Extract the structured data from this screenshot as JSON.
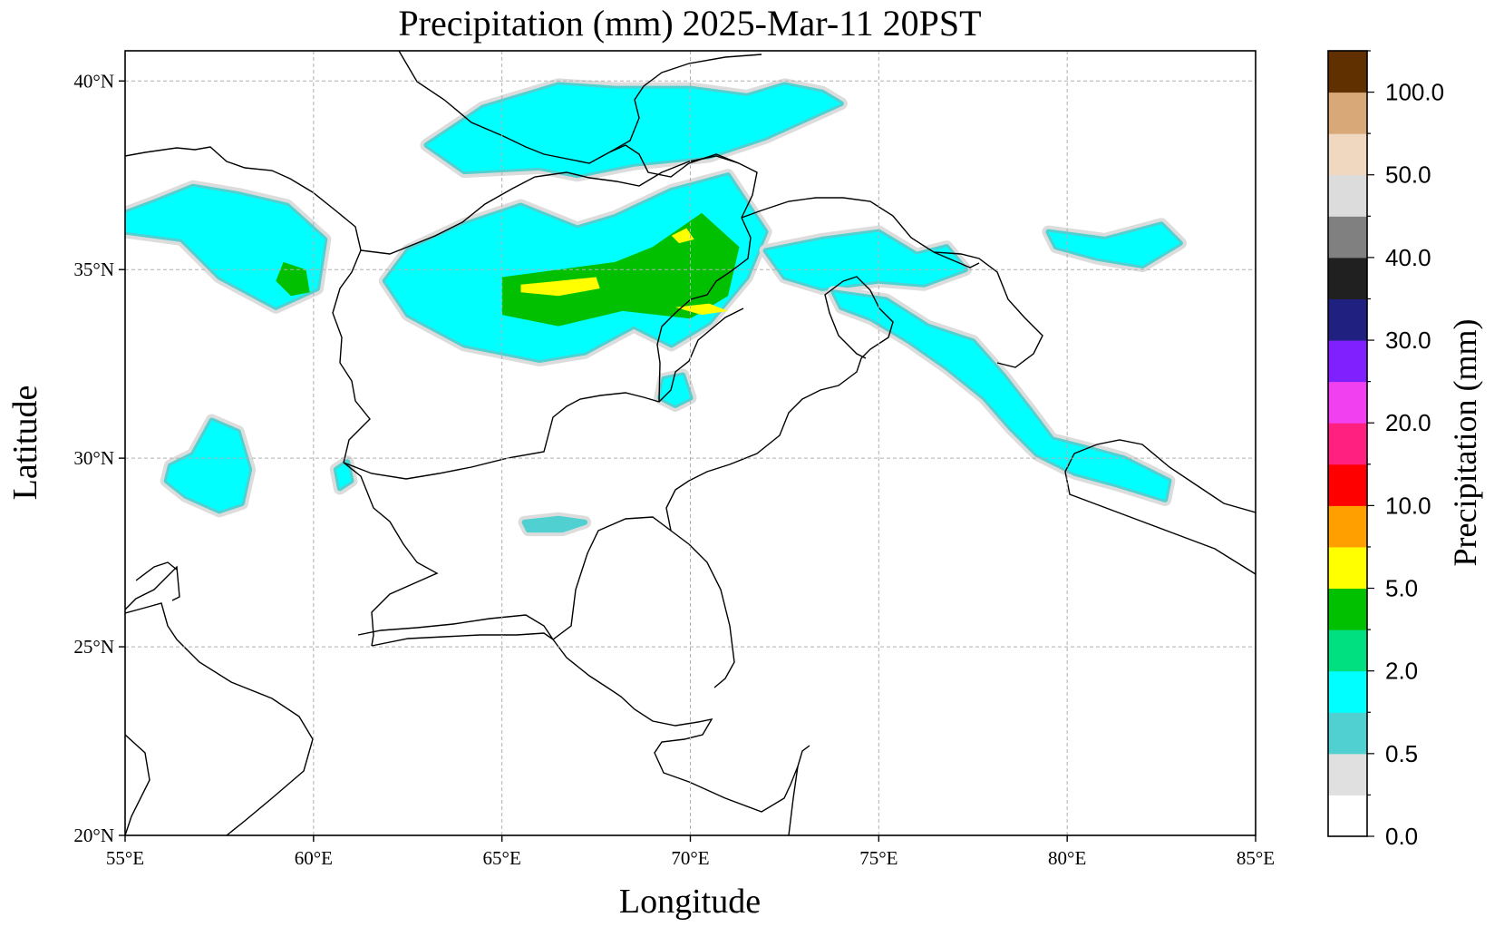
{
  "title": "Precipitation (mm)  2025-Mar-11 20PST",
  "xlabel": "Longitude",
  "ylabel": "Latitude",
  "colorbar_label": "Precipitation (mm)",
  "x_ticks": [
    "55°E",
    "60°E",
    "65°E",
    "70°E",
    "75°E",
    "80°E",
    "85°E"
  ],
  "y_ticks": [
    "40°N",
    "35°N",
    "30°N",
    "25°N",
    "20°N"
  ],
  "colorbar_ticks": [
    "100.0",
    "50.0",
    "40.0",
    "30.0",
    "20.0",
    "10.0",
    "5.0",
    "2.0",
    "0.5",
    "0.0"
  ],
  "chart_data": {
    "type": "heatmap",
    "title": "Precipitation (mm)  2025-Mar-11 20PST",
    "xlabel": "Longitude",
    "ylabel": "Latitude",
    "xlim": [
      55,
      85
    ],
    "ylim": [
      20,
      40.8
    ],
    "x_ticks_deg": [
      55,
      60,
      65,
      70,
      75,
      80,
      85
    ],
    "y_ticks_deg": [
      40,
      35,
      30,
      25,
      20
    ],
    "grid": true,
    "colorbar": {
      "label": "Precipitation (mm)",
      "tick_values": [
        0.0,
        0.5,
        2.0,
        5.0,
        10.0,
        20.0,
        30.0,
        40.0,
        50.0,
        100.0
      ],
      "colors": [
        "#ffffff",
        "#e0e0e0",
        "#50d0d0",
        "#00ffff",
        "#00e080",
        "#00c000",
        "#ffff00",
        "#ffa000",
        "#ff0000",
        "#ff2080",
        "#f040f0",
        "#8020ff",
        "#202080",
        "#202020",
        "#808080",
        "#dcdcdc",
        "#f0d8c0",
        "#d8a878",
        "#603000"
      ]
    },
    "regions": [
      {
        "level_color": "#00ffff",
        "points": [
          [
            55.0,
            36.5
          ],
          [
            55.8,
            36.8
          ],
          [
            56.8,
            37.2
          ],
          [
            58.0,
            37.0
          ],
          [
            59.3,
            36.7
          ],
          [
            60.3,
            35.8
          ],
          [
            60.1,
            34.5
          ],
          [
            59.0,
            34.0
          ],
          [
            57.5,
            34.8
          ],
          [
            56.5,
            35.8
          ],
          [
            55.0,
            36.0
          ]
        ]
      },
      {
        "level_color": "#00c000",
        "points": [
          [
            59.2,
            35.2
          ],
          [
            59.8,
            35.0
          ],
          [
            59.9,
            34.4
          ],
          [
            59.4,
            34.3
          ],
          [
            59.0,
            34.7
          ]
        ]
      },
      {
        "level_color": "#00ffff",
        "points": [
          [
            62.5,
            35.5
          ],
          [
            64.0,
            36.2
          ],
          [
            65.5,
            36.7
          ],
          [
            67.0,
            36.1
          ],
          [
            68.0,
            36.4
          ],
          [
            69.5,
            37.1
          ],
          [
            71.0,
            37.5
          ],
          [
            72.0,
            36.0
          ],
          [
            71.5,
            34.8
          ],
          [
            70.5,
            33.6
          ],
          [
            69.5,
            33.0
          ],
          [
            68.5,
            33.5
          ],
          [
            67.2,
            32.8
          ],
          [
            66.0,
            32.6
          ],
          [
            64.0,
            33.0
          ],
          [
            62.5,
            33.8
          ],
          [
            61.9,
            34.7
          ]
        ]
      },
      {
        "level_color": "#00c000",
        "points": [
          [
            65.0,
            34.8
          ],
          [
            66.5,
            35.0
          ],
          [
            68.0,
            35.2
          ],
          [
            69.0,
            35.6
          ],
          [
            70.3,
            36.5
          ],
          [
            71.3,
            35.6
          ],
          [
            71.0,
            34.3
          ],
          [
            70.0,
            33.7
          ],
          [
            68.2,
            33.9
          ],
          [
            66.5,
            33.5
          ],
          [
            65.0,
            33.8
          ]
        ]
      },
      {
        "level_color": "#ffff00",
        "points": [
          [
            65.5,
            34.6
          ],
          [
            66.5,
            34.7
          ],
          [
            67.5,
            34.8
          ],
          [
            67.6,
            34.5
          ],
          [
            66.5,
            34.3
          ],
          [
            65.5,
            34.4
          ]
        ]
      },
      {
        "level_color": "#ffff00",
        "points": [
          [
            69.5,
            35.9
          ],
          [
            69.9,
            36.1
          ],
          [
            70.1,
            35.8
          ],
          [
            69.7,
            35.7
          ]
        ]
      },
      {
        "level_color": "#ffff00",
        "points": [
          [
            69.6,
            34.0
          ],
          [
            70.5,
            34.1
          ],
          [
            71.0,
            33.9
          ],
          [
            70.3,
            33.8
          ]
        ]
      },
      {
        "level_color": "#00ffff",
        "points": [
          [
            63.0,
            38.3
          ],
          [
            64.5,
            39.3
          ],
          [
            66.5,
            39.9
          ],
          [
            68.0,
            39.8
          ],
          [
            70.0,
            39.8
          ],
          [
            71.5,
            39.6
          ],
          [
            72.5,
            39.9
          ],
          [
            73.5,
            39.7
          ],
          [
            74.0,
            39.4
          ],
          [
            72.0,
            38.5
          ],
          [
            70.5,
            38.0
          ],
          [
            68.5,
            37.8
          ],
          [
            67.0,
            37.5
          ],
          [
            66.0,
            37.7
          ],
          [
            64.0,
            37.6
          ]
        ]
      },
      {
        "level_color": "#00ffff",
        "points": [
          [
            72.0,
            35.5
          ],
          [
            73.5,
            35.8
          ],
          [
            75.0,
            36.0
          ],
          [
            76.0,
            35.4
          ],
          [
            76.8,
            35.6
          ],
          [
            77.3,
            35.0
          ],
          [
            76.2,
            34.6
          ],
          [
            75.0,
            34.7
          ],
          [
            73.5,
            34.5
          ],
          [
            72.5,
            34.8
          ]
        ]
      },
      {
        "level_color": "#00ffff",
        "points": [
          [
            73.8,
            34.4
          ],
          [
            75.2,
            34.2
          ],
          [
            76.3,
            33.5
          ],
          [
            77.5,
            33.1
          ],
          [
            78.3,
            32.2
          ],
          [
            79.0,
            31.3
          ],
          [
            79.6,
            30.5
          ],
          [
            80.4,
            30.3
          ],
          [
            81.5,
            30.0
          ],
          [
            82.7,
            29.4
          ],
          [
            82.6,
            28.9
          ],
          [
            81.3,
            29.3
          ],
          [
            80.2,
            29.6
          ],
          [
            79.2,
            30.1
          ],
          [
            78.5,
            30.8
          ],
          [
            77.8,
            31.6
          ],
          [
            76.8,
            32.4
          ],
          [
            75.8,
            33.1
          ],
          [
            74.8,
            33.7
          ],
          [
            74.0,
            34.0
          ]
        ]
      },
      {
        "level_color": "#00ffff",
        "points": [
          [
            79.5,
            36.0
          ],
          [
            81.0,
            35.8
          ],
          [
            82.5,
            36.2
          ],
          [
            83.0,
            35.7
          ],
          [
            82.0,
            35.1
          ],
          [
            80.8,
            35.3
          ],
          [
            79.7,
            35.6
          ]
        ]
      },
      {
        "level_color": "#00ffff",
        "points": [
          [
            56.2,
            29.8
          ],
          [
            56.8,
            30.1
          ],
          [
            57.3,
            31.0
          ],
          [
            58.0,
            30.7
          ],
          [
            58.3,
            29.7
          ],
          [
            58.1,
            28.8
          ],
          [
            57.5,
            28.6
          ],
          [
            56.6,
            29.0
          ],
          [
            56.1,
            29.4
          ]
        ]
      },
      {
        "level_color": "#00ffff",
        "points": [
          [
            60.6,
            29.7
          ],
          [
            60.9,
            29.9
          ],
          [
            61.0,
            29.4
          ],
          [
            60.7,
            29.2
          ]
        ]
      },
      {
        "level_color": "#50d0d0",
        "points": [
          [
            65.6,
            28.3
          ],
          [
            66.5,
            28.4
          ],
          [
            67.2,
            28.3
          ],
          [
            66.6,
            28.1
          ],
          [
            65.7,
            28.1
          ]
        ]
      },
      {
        "level_color": "#00ffff",
        "points": [
          [
            69.3,
            32.1
          ],
          [
            69.8,
            32.2
          ],
          [
            70.0,
            31.6
          ],
          [
            69.6,
            31.4
          ],
          [
            69.2,
            31.6
          ]
        ]
      }
    ]
  }
}
